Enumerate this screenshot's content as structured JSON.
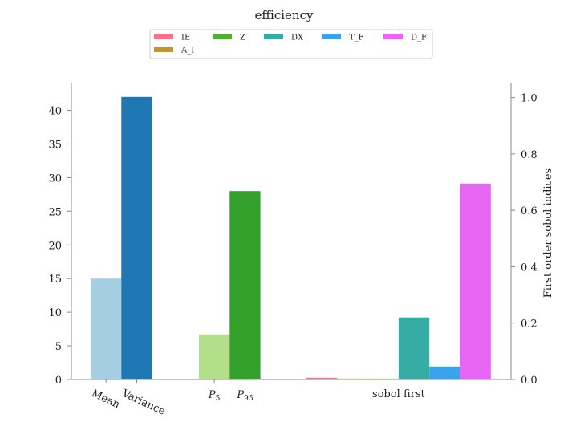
{
  "chart_data": {
    "type": "bar",
    "title": "efficiency",
    "left_axis": {
      "ylim": [
        0,
        44
      ],
      "ticks": [
        0,
        5,
        10,
        15,
        20,
        25,
        30,
        35,
        40
      ]
    },
    "right_axis": {
      "label": "First order sobol indices",
      "ylim": [
        0,
        1.05
      ],
      "ticks": [
        "0.0",
        "0.2",
        "0.4",
        "0.6",
        "0.8",
        "1.0"
      ]
    },
    "groups": [
      {
        "axis": "left",
        "bars": [
          {
            "label": "Mean",
            "value": 15.0,
            "color": "#a6cee3"
          },
          {
            "label": "Variance",
            "value": 42.0,
            "color": "#1f78b4"
          }
        ]
      },
      {
        "axis": "left",
        "bars": [
          {
            "label": "P5",
            "value": 6.7,
            "color": "#b2df8a"
          },
          {
            "label": "P95",
            "value": 28.0,
            "color": "#33a02c"
          }
        ]
      },
      {
        "axis": "right",
        "label": "sobol first",
        "bars": [
          {
            "label": "IE",
            "value": 0.006,
            "color": "#f77189"
          },
          {
            "label": "A_I",
            "value": 0.003,
            "color": "#bb9832"
          },
          {
            "label": "Z",
            "value": 0.003,
            "color": "#50b131"
          },
          {
            "label": "DX",
            "value": 0.22,
            "color": "#36ada4"
          },
          {
            "label": "T_F",
            "value": 0.046,
            "color": "#3ba3ec"
          },
          {
            "label": "D_F",
            "value": 0.695,
            "color": "#e866f4"
          }
        ]
      }
    ],
    "legend": {
      "placement": "top-center",
      "entries": [
        {
          "label": "IE",
          "color": "#f77189"
        },
        {
          "label": "Z",
          "color": "#50b131"
        },
        {
          "label": "DX",
          "color": "#36ada4"
        },
        {
          "label": "T_F",
          "color": "#3ba3ec"
        },
        {
          "label": "D_F",
          "color": "#e866f4"
        },
        {
          "label": "A_I",
          "color": "#bb9832"
        }
      ]
    },
    "grid": false
  }
}
